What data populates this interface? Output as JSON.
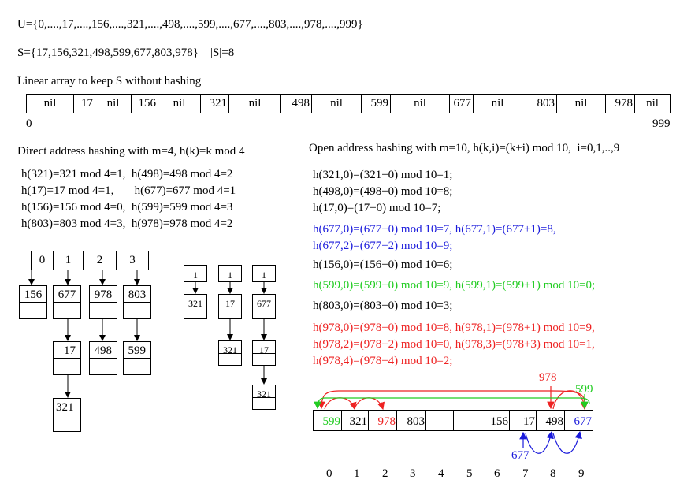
{
  "universe_line": "U={0,....,17,....,156,....,321,....,498,....,599,....,677,....,803,....,978,....,999}",
  "set_line": "S={17,156,321,498,599,677,803,978}    |S|=8",
  "linear": {
    "title": "Linear array to keep S without hashing",
    "cells": [
      "nil",
      "17",
      "nil",
      "156",
      "nil",
      "321",
      "nil",
      "498",
      "nil",
      "599",
      "nil",
      "677",
      "nil",
      "803",
      "nil",
      "978",
      "nil"
    ],
    "start_label": "0",
    "end_label": "999"
  },
  "direct": {
    "title": "Direct address hashing with m=4, h(k)=k mod 4",
    "lines": [
      "h(321)=321 mod 4=1,  h(498)=498 mod 4=2",
      "h(17)=17 mod 4=1,       h(677)=677 mod 4=1",
      "h(156)=156 mod 4=0,  h(599)=599 mod 4=3",
      "h(803)=803 mod 4=3,  h(978)=978 mod 4=2"
    ],
    "table_index": [
      "0",
      "1",
      "2",
      "3"
    ],
    "row1": [
      "156",
      "677",
      "978",
      "803"
    ],
    "row2": [
      "17",
      "498",
      "599"
    ],
    "row3": [
      "321"
    ],
    "mini_head": [
      "1",
      "1",
      "1"
    ],
    "mini_col1": [
      "321"
    ],
    "mini_col2": [
      "17",
      "321"
    ],
    "mini_col3": [
      "677",
      "17",
      "321"
    ]
  },
  "open": {
    "title": "Open address hashing with m=10, h(k,i)=(k+i) mod 10,  i=0,1,..,9",
    "lines": [
      {
        "text": "h(321,0)=(321+0) mod 10=1;",
        "color": "#000000"
      },
      {
        "text": "h(498,0)=(498+0) mod 10=8;",
        "color": "#000000"
      },
      {
        "text": "h(17,0)=(17+0) mod 10=7;",
        "color": "#000000"
      },
      {
        "text": "h(677,0)=(677+0) mod 10=7, h(677,1)=(677+1)=8,",
        "color": "#1a1adb"
      },
      {
        "text": "h(677,2)=(677+2) mod 10=9;",
        "color": "#1a1adb"
      },
      {
        "text": "h(156,0)=(156+0) mod 10=6;",
        "color": "#000000"
      },
      {
        "text": "h(599,0)=(599+0) mod 10=9, h(599,1)=(599+1) mod 10=0;",
        "color": "#22cc22"
      },
      {
        "text": "h(803,0)=(803+0) mod 10=3;",
        "color": "#000000"
      },
      {
        "text": "h(978,0)=(978+0) mod 10=8, h(978,1)=(978+1) mod 10=9,",
        "color": "#ee2222"
      },
      {
        "text": "h(978,2)=(978+2) mod 10=0, h(978,3)=(978+3) mod 10=1,",
        "color": "#ee2222"
      },
      {
        "text": "h(978,4)=(978+4) mod 10=2;",
        "color": "#ee2222"
      }
    ],
    "table": [
      {
        "text": "599",
        "color": "#22cc22"
      },
      {
        "text": "321",
        "color": "#000000"
      },
      {
        "text": "978",
        "color": "#ee2222"
      },
      {
        "text": "803",
        "color": "#000000"
      },
      {
        "text": "",
        "color": "#000000"
      },
      {
        "text": "",
        "color": "#000000"
      },
      {
        "text": "156",
        "color": "#000000"
      },
      {
        "text": "17",
        "color": "#000000"
      },
      {
        "text": "498",
        "color": "#000000"
      },
      {
        "text": "677",
        "color": "#1a1adb"
      }
    ],
    "indices": [
      "0",
      "1",
      "2",
      "3",
      "4",
      "5",
      "6",
      "7",
      "8",
      "9"
    ],
    "probe_labels": [
      {
        "text": "978",
        "color": "#ee2222"
      },
      {
        "text": "599",
        "color": "#22cc22"
      },
      {
        "text": "677",
        "color": "#1a1adb"
      }
    ]
  }
}
